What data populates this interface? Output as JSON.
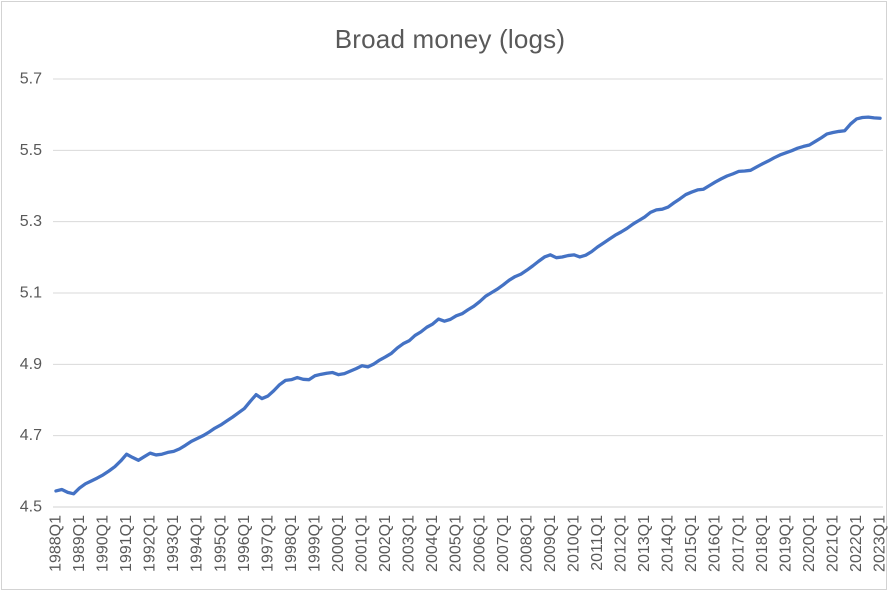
{
  "chart_data": {
    "type": "line",
    "title": "Broad money (logs)",
    "xlabel": "",
    "ylabel": "",
    "ylim": [
      4.5,
      5.7
    ],
    "y_ticks": [
      4.5,
      4.7,
      4.9,
      5.1,
      5.3,
      5.5,
      5.7
    ],
    "y_tick_decimals": 1,
    "x_label_interval": 4,
    "x_label_rotation_deg": -90,
    "grid": true,
    "legend": "none",
    "colors": {
      "line": "#4472C4",
      "gridline": "#D9D9D9",
      "axis_text": "#595959",
      "title_text": "#595959",
      "chart_border": "#D3D3D3"
    },
    "categories": [
      "1988Q1",
      "1988Q2",
      "1988Q3",
      "1988Q4",
      "1989Q1",
      "1989Q2",
      "1989Q3",
      "1989Q4",
      "1990Q1",
      "1990Q2",
      "1990Q3",
      "1990Q4",
      "1991Q1",
      "1991Q2",
      "1991Q3",
      "1991Q4",
      "1992Q1",
      "1992Q2",
      "1992Q3",
      "1992Q4",
      "1993Q1",
      "1993Q2",
      "1993Q3",
      "1993Q4",
      "1994Q1",
      "1994Q2",
      "1994Q3",
      "1994Q4",
      "1995Q1",
      "1995Q2",
      "1995Q3",
      "1995Q4",
      "1996Q1",
      "1996Q2",
      "1996Q3",
      "1996Q4",
      "1997Q1",
      "1997Q2",
      "1997Q3",
      "1997Q4",
      "1998Q1",
      "1998Q2",
      "1998Q3",
      "1998Q4",
      "1999Q1",
      "1999Q2",
      "1999Q3",
      "1999Q4",
      "2000Q1",
      "2000Q2",
      "2000Q3",
      "2000Q4",
      "2001Q1",
      "2001Q2",
      "2001Q3",
      "2001Q4",
      "2002Q1",
      "2002Q2",
      "2002Q3",
      "2002Q4",
      "2003Q1",
      "2003Q2",
      "2003Q3",
      "2003Q4",
      "2004Q1",
      "2004Q2",
      "2004Q3",
      "2004Q4",
      "2005Q1",
      "2005Q2",
      "2005Q3",
      "2005Q4",
      "2006Q1",
      "2006Q2",
      "2006Q3",
      "2006Q4",
      "2007Q1",
      "2007Q2",
      "2007Q3",
      "2007Q4",
      "2008Q1",
      "2008Q2",
      "2008Q3",
      "2008Q4",
      "2009Q1",
      "2009Q2",
      "2009Q3",
      "2009Q4",
      "2010Q1",
      "2010Q2",
      "2010Q3",
      "2010Q4",
      "2011Q1",
      "2011Q2",
      "2011Q3",
      "2011Q4",
      "2012Q1",
      "2012Q2",
      "2012Q3",
      "2012Q4",
      "2013Q1",
      "2013Q2",
      "2013Q3",
      "2013Q4",
      "2014Q1",
      "2014Q2",
      "2014Q3",
      "2014Q4",
      "2015Q1",
      "2015Q2",
      "2015Q3",
      "2015Q4",
      "2016Q1",
      "2016Q2",
      "2016Q3",
      "2016Q4",
      "2017Q1",
      "2017Q2",
      "2017Q3",
      "2017Q4",
      "2018Q1",
      "2018Q2",
      "2018Q3",
      "2018Q4",
      "2019Q1",
      "2019Q2",
      "2019Q3",
      "2019Q4",
      "2020Q1",
      "2020Q2",
      "2020Q3",
      "2020Q4",
      "2021Q1",
      "2021Q2",
      "2021Q3",
      "2021Q4",
      "2022Q1",
      "2022Q2",
      "2022Q3",
      "2022Q4",
      "2023Q1"
    ],
    "series": [
      {
        "name": "Broad money (logs)",
        "values": [
          4.545,
          4.549,
          4.541,
          4.537,
          4.553,
          4.565,
          4.573,
          4.581,
          4.59,
          4.601,
          4.613,
          4.629,
          4.648,
          4.639,
          4.631,
          4.641,
          4.651,
          4.646,
          4.648,
          4.653,
          4.656,
          4.663,
          4.673,
          4.684,
          4.692,
          4.7,
          4.71,
          4.721,
          4.73,
          4.741,
          4.752,
          4.764,
          4.776,
          4.796,
          4.815,
          4.804,
          4.811,
          4.826,
          4.843,
          4.855,
          4.857,
          4.863,
          4.858,
          4.857,
          4.868,
          4.872,
          4.875,
          4.877,
          4.871,
          4.874,
          4.881,
          4.888,
          4.896,
          4.893,
          4.901,
          4.912,
          4.921,
          4.931,
          4.946,
          4.958,
          4.966,
          4.981,
          4.991,
          5.004,
          5.013,
          5.027,
          5.021,
          5.026,
          5.036,
          5.042,
          5.053,
          5.063,
          5.076,
          5.091,
          5.101,
          5.111,
          5.123,
          5.136,
          5.146,
          5.153,
          5.164,
          5.176,
          5.189,
          5.201,
          5.207,
          5.199,
          5.201,
          5.205,
          5.207,
          5.201,
          5.206,
          5.216,
          5.229,
          5.24,
          5.251,
          5.262,
          5.271,
          5.281,
          5.293,
          5.303,
          5.313,
          5.326,
          5.333,
          5.335,
          5.341,
          5.353,
          5.364,
          5.376,
          5.383,
          5.389,
          5.391,
          5.401,
          5.411,
          5.42,
          5.428,
          5.434,
          5.441,
          5.442,
          5.444,
          5.453,
          5.462,
          5.47,
          5.479,
          5.487,
          5.493,
          5.499,
          5.506,
          5.511,
          5.515,
          5.525,
          5.535,
          5.546,
          5.55,
          5.553,
          5.555,
          5.574,
          5.588,
          5.592,
          5.593,
          5.591,
          5.59
        ]
      }
    ]
  }
}
